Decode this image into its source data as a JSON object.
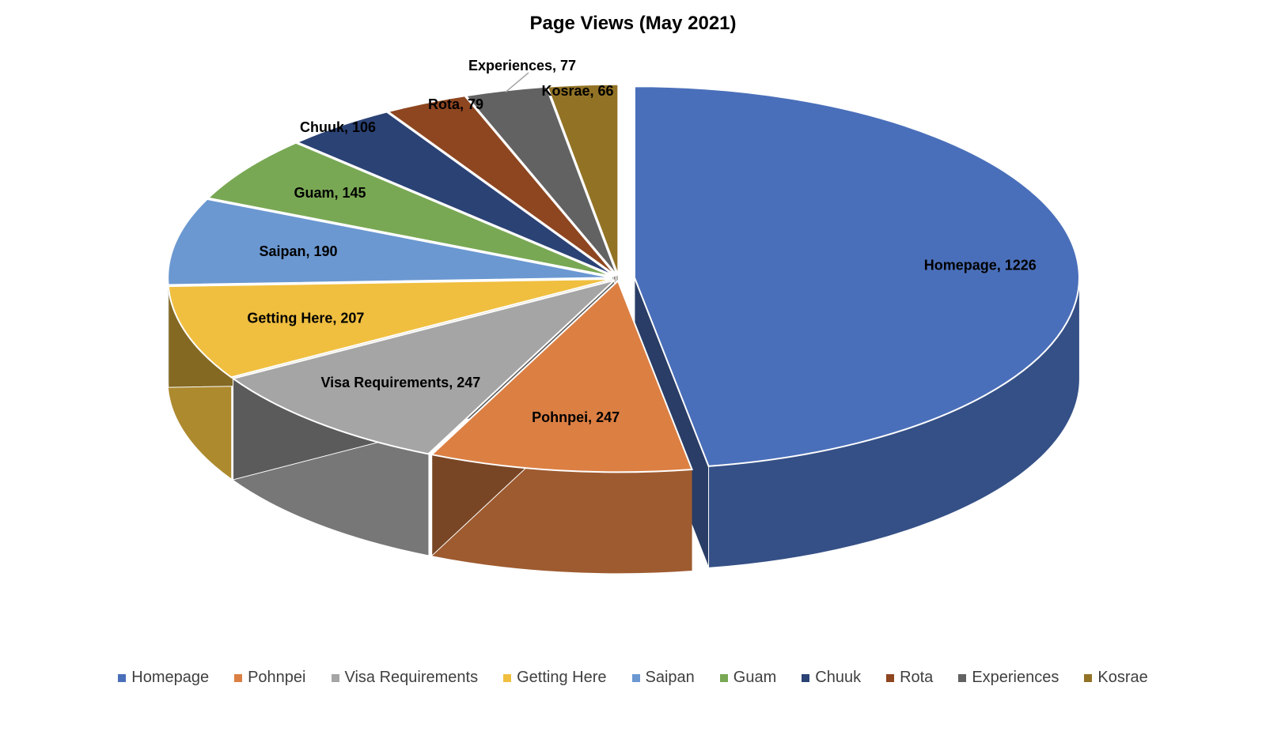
{
  "chart_data": {
    "type": "pie",
    "title": "Page Views (May 2021)",
    "style": "3d-exploded",
    "legend_position": "bottom",
    "categories": [
      "Homepage",
      "Pohnpei",
      "Visa Requirements",
      "Getting Here",
      "Saipan",
      "Guam",
      "Chuuk",
      "Rota",
      "Experiences",
      "Kosrae"
    ],
    "values": [
      1226,
      247,
      247,
      207,
      190,
      145,
      106,
      79,
      77,
      66
    ],
    "data_labels": [
      "Homepage, 1226",
      "Pohnpei, 247",
      "Visa Requirements, 247",
      "Getting Here, 207",
      "Saipan, 190",
      "Guam, 145",
      "Chuuk, 106",
      "Rota, 79",
      "Experiences, 77",
      "Kosrae, 66"
    ],
    "colors": [
      "#4a6fba",
      "#dc7f43",
      "#a5a5a5",
      "#f0bf40",
      "#6b98d1",
      "#79a854",
      "#2b4275",
      "#8e4620",
      "#626262",
      "#927325"
    ]
  }
}
